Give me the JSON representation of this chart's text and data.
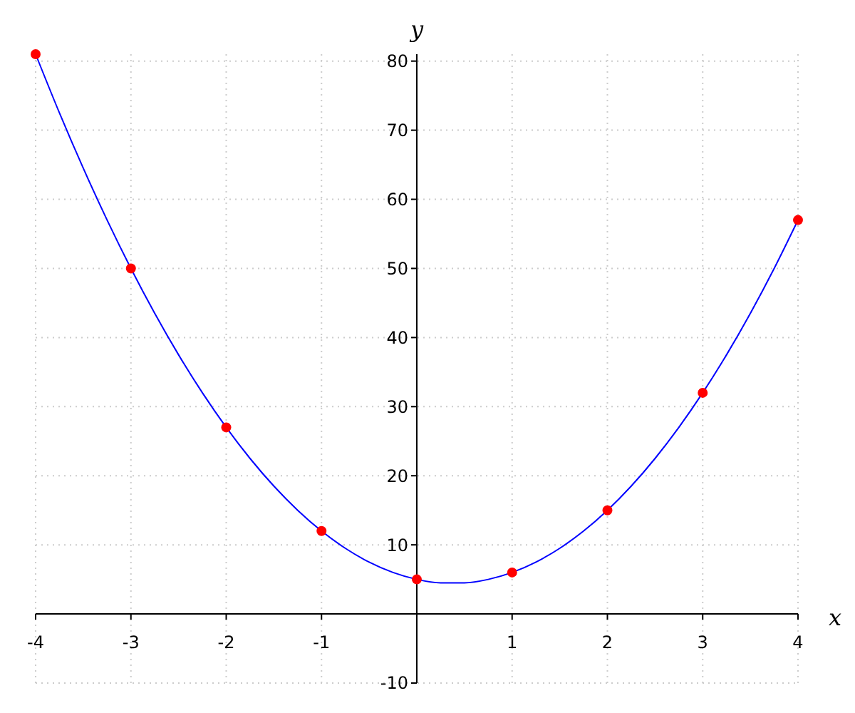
{
  "chart_data": {
    "type": "scatter",
    "xlabel": "x",
    "ylabel": "y",
    "xlim": [
      -4,
      4
    ],
    "ylim": [
      -10,
      81
    ],
    "xticks": [
      -4,
      -3,
      -2,
      -1,
      1,
      2,
      3,
      4
    ],
    "yticks": [
      -10,
      10,
      20,
      30,
      40,
      50,
      60,
      70,
      80
    ],
    "grid": true,
    "marker": "circle",
    "series": [
      {
        "type": "line",
        "color": "#0000ff",
        "marker": "none",
        "x": [
          -4,
          -3.75,
          -3.5,
          -3.25,
          -3,
          -2.75,
          -2.5,
          -2.25,
          -2,
          -1.75,
          -1.5,
          -1.25,
          -1,
          -0.75,
          -0.5,
          -0.25,
          0,
          0.25,
          0.5,
          0.75,
          1,
          1.25,
          1.5,
          1.75,
          2,
          2.25,
          2.5,
          2.75,
          3,
          3.25,
          3.5,
          3.75,
          4
        ],
        "values": [
          81,
          72.5,
          64.5,
          57,
          50,
          43.5,
          37.5,
          32,
          27,
          22.5,
          18.5,
          15,
          12,
          9.5,
          7.5,
          6,
          5,
          4.5,
          4.5,
          5,
          6,
          7.5,
          9.5,
          12,
          15,
          18.5,
          22.5,
          27,
          32,
          37.5,
          43.5,
          50,
          57
        ]
      },
      {
        "color": "#ff0000",
        "x": [
          -4,
          -3,
          -2,
          -1,
          0,
          1,
          2,
          3,
          4
        ],
        "values": [
          81,
          50,
          27,
          12,
          5,
          6,
          15,
          32,
          57
        ]
      }
    ]
  }
}
